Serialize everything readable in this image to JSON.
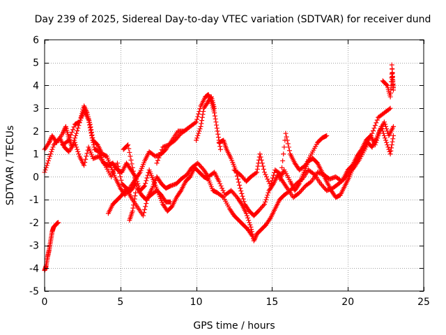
{
  "chart_data": {
    "type": "scatter",
    "title": "Day 239 of 2025, Sidereal Day-to-day VTEC variation (SDTVAR) for receiver dund",
    "xlabel": "GPS time / hours",
    "ylabel": "SDTVAR / TECUs",
    "xlim": [
      0,
      25
    ],
    "ylim": [
      -5,
      6
    ],
    "xticks": [
      0,
      5,
      10,
      15,
      20,
      25
    ],
    "yticks": [
      -5,
      -4,
      -3,
      -2,
      -1,
      0,
      1,
      2,
      3,
      4,
      5,
      6
    ],
    "grid": true,
    "marker": "+",
    "series": [
      {
        "name": "SDTVAR",
        "color": "#ff0000",
        "tracks": [
          [
            [
              0,
              -4.1
            ],
            [
              0.1,
              -3.9
            ],
            [
              0.2,
              -3.5
            ],
            [
              0.3,
              -3.2
            ],
            [
              0.4,
              -2.8
            ],
            [
              0.5,
              -2.4
            ],
            [
              0.6,
              -2.2
            ],
            [
              0.8,
              -2.05
            ],
            [
              0.9,
              -2.0
            ]
          ],
          [
            [
              0,
              1.2
            ],
            [
              0.3,
              1.5
            ],
            [
              0.5,
              1.8
            ],
            [
              0.8,
              1.5
            ],
            [
              1.2,
              1.9
            ],
            [
              1.4,
              2.2
            ],
            [
              1.6,
              1.7
            ],
            [
              1.8,
              1.3
            ],
            [
              2.1,
              1.9
            ],
            [
              2.4,
              2.6
            ],
            [
              2.6,
              3.1
            ],
            [
              2.8,
              2.8
            ],
            [
              3.0,
              2.3
            ],
            [
              3.2,
              1.6
            ],
            [
              3.5,
              1.4
            ],
            [
              3.8,
              1.0
            ],
            [
              4.1,
              0.9
            ],
            [
              4.4,
              0.4
            ],
            [
              4.7,
              -0.1
            ],
            [
              5.0,
              -0.5
            ],
            [
              5.3,
              -0.8
            ],
            [
              5.7,
              -0.4
            ],
            [
              6.0,
              -0.1
            ],
            [
              6.3,
              0.2
            ],
            [
              6.6,
              0.7
            ],
            [
              6.9,
              1.1
            ],
            [
              7.3,
              0.9
            ],
            [
              7.7,
              1.0
            ],
            [
              8.0,
              1.2
            ],
            [
              8.4,
              1.6
            ],
            [
              8.8,
              2.0
            ],
            [
              9.2,
              2.0
            ],
            [
              9.6,
              2.2
            ],
            [
              10.0,
              2.4
            ],
            [
              10.3,
              3.1
            ],
            [
              10.6,
              3.5
            ],
            [
              10.8,
              3.6
            ],
            [
              11.0,
              3.3
            ],
            [
              11.2,
              2.8
            ],
            [
              11.4,
              2.0
            ],
            [
              11.6,
              1.2
            ]
          ],
          [
            [
              0,
              0.2
            ],
            [
              0.3,
              0.8
            ],
            [
              0.6,
              1.4
            ],
            [
              1.0,
              1.7
            ],
            [
              1.3,
              1.3
            ],
            [
              1.6,
              1.1
            ],
            [
              2.0,
              1.5
            ],
            [
              2.3,
              0.9
            ],
            [
              2.6,
              0.5
            ],
            [
              2.9,
              1.3
            ],
            [
              3.2,
              0.8
            ],
            [
              3.6,
              0.9
            ],
            [
              4.0,
              0.5
            ],
            [
              4.4,
              0.0
            ],
            [
              4.8,
              0.6
            ],
            [
              5.1,
              -0.3
            ],
            [
              5.4,
              -0.5
            ],
            [
              5.7,
              -0.9
            ],
            [
              6.1,
              -1.3
            ],
            [
              6.5,
              -1.7
            ],
            [
              6.8,
              -0.9
            ],
            [
              7.1,
              -0.5
            ],
            [
              7.4,
              0.0
            ],
            [
              7.7,
              -0.3
            ],
            [
              8.0,
              -0.5
            ],
            [
              8.3,
              -0.4
            ],
            [
              8.7,
              -0.3
            ],
            [
              9.0,
              -0.1
            ],
            [
              9.4,
              0.1
            ],
            [
              9.7,
              0.4
            ],
            [
              10.1,
              0.6
            ],
            [
              10.5,
              0.3
            ],
            [
              10.8,
              0.0
            ],
            [
              11.2,
              0.2
            ],
            [
              11.5,
              -0.2
            ],
            [
              11.9,
              -0.8
            ],
            [
              12.3,
              -0.6
            ],
            [
              12.7,
              -0.9
            ],
            [
              13.0,
              -1.2
            ],
            [
              13.3,
              -1.6
            ],
            [
              13.6,
              -2.2
            ],
            [
              13.8,
              -2.8
            ],
            [
              14.0,
              -2.5
            ],
            [
              14.3,
              -2.3
            ],
            [
              14.6,
              -2.1
            ],
            [
              14.9,
              -1.8
            ],
            [
              15.2,
              -1.4
            ],
            [
              15.5,
              -1.0
            ],
            [
              15.8,
              -0.8
            ],
            [
              16.2,
              -0.6
            ],
            [
              16.6,
              -0.3
            ],
            [
              17.0,
              -0.1
            ],
            [
              17.4,
              0.3
            ],
            [
              17.8,
              0.1
            ],
            [
              18.2,
              -0.3
            ],
            [
              18.6,
              -0.6
            ],
            [
              19.0,
              -0.5
            ],
            [
              19.4,
              -0.3
            ],
            [
              19.7,
              -0.1
            ],
            [
              20.0,
              0.3
            ],
            [
              20.3,
              0.5
            ],
            [
              20.6,
              0.9
            ],
            [
              20.9,
              1.2
            ],
            [
              21.2,
              1.6
            ],
            [
              21.5,
              1.8
            ],
            [
              21.8,
              1.4
            ],
            [
              22.1,
              2.0
            ],
            [
              22.4,
              2.4
            ],
            [
              22.7,
              1.8
            ],
            [
              23.0,
              2.2
            ]
          ],
          [
            [
              1.2,
              1.4
            ],
            [
              1.6,
              1.6
            ],
            [
              2.0,
              2.3
            ],
            [
              2.3,
              2.4
            ],
            [
              2.6,
              2.9
            ],
            [
              2.9,
              2.5
            ],
            [
              3.1,
              1.8
            ],
            [
              3.3,
              1.2
            ],
            [
              3.6,
              1.1
            ],
            [
              3.9,
              0.6
            ],
            [
              4.2,
              0.5
            ],
            [
              4.5,
              0.6
            ],
            [
              4.8,
              0.3
            ],
            [
              5.1,
              0.2
            ],
            [
              5.4,
              0.6
            ],
            [
              5.7,
              0.3
            ],
            [
              6.0,
              0.0
            ],
            [
              6.3,
              -0.6
            ],
            [
              6.6,
              -0.4
            ],
            [
              6.9,
              0.3
            ],
            [
              7.2,
              -0.2
            ],
            [
              7.5,
              -0.7
            ],
            [
              7.8,
              -1.2
            ],
            [
              8.1,
              -1.5
            ],
            [
              8.4,
              -1.3
            ],
            [
              8.7,
              -0.9
            ],
            [
              9.0,
              -0.6
            ],
            [
              9.3,
              -0.2
            ],
            [
              9.6,
              0.0
            ],
            [
              9.9,
              0.4
            ],
            [
              10.2,
              0.2
            ],
            [
              10.5,
              0.0
            ],
            [
              10.8,
              -0.1
            ],
            [
              11.1,
              -0.6
            ],
            [
              11.4,
              -0.7
            ],
            [
              11.8,
              -0.9
            ],
            [
              12.2,
              -1.4
            ],
            [
              12.5,
              -1.7
            ],
            [
              12.8,
              -1.9
            ],
            [
              13.1,
              -2.1
            ],
            [
              13.4,
              -2.3
            ],
            [
              13.7,
              -2.6
            ]
          ],
          [
            [
              4.2,
              -1.6
            ],
            [
              4.5,
              -1.2
            ],
            [
              4.8,
              -1.0
            ],
            [
              5.1,
              -0.8
            ],
            [
              5.4,
              -0.5
            ],
            [
              5.7,
              -0.6
            ],
            [
              6.0,
              -0.3
            ]
          ],
          [
            [
              5.2,
              1.2
            ],
            [
              5.5,
              1.4
            ],
            [
              5.8,
              0.4
            ],
            [
              6.1,
              -0.5
            ],
            [
              6.4,
              -0.8
            ],
            [
              6.7,
              -1.0
            ],
            [
              7.0,
              -0.8
            ],
            [
              7.4,
              -0.6
            ],
            [
              7.7,
              -0.8
            ],
            [
              8.0,
              -1.1
            ],
            [
              8.3,
              -1.1
            ]
          ],
          [
            [
              5.6,
              -1.9
            ],
            [
              5.8,
              -1.5
            ],
            [
              6.0,
              -0.7
            ]
          ],
          [
            [
              7.4,
              0.6
            ],
            [
              7.8,
              1.3
            ],
            [
              8.2,
              1.4
            ],
            [
              8.6,
              1.6
            ],
            [
              9.0,
              1.9
            ],
            [
              9.4,
              2.1
            ]
          ],
          [
            [
              10.0,
              1.6
            ],
            [
              10.3,
              2.2
            ],
            [
              10.5,
              3.0
            ],
            [
              10.8,
              3.3
            ],
            [
              11.0,
              3.5
            ],
            [
              11.2,
              3.0
            ]
          ],
          [
            [
              11.5,
              1.5
            ],
            [
              11.8,
              1.6
            ],
            [
              12.0,
              1.2
            ],
            [
              12.3,
              0.8
            ],
            [
              12.6,
              0.3
            ],
            [
              12.9,
              -0.5
            ],
            [
              13.2,
              -1.2
            ],
            [
              13.5,
              -1.5
            ],
            [
              13.8,
              -1.7
            ],
            [
              14.1,
              -1.5
            ],
            [
              14.5,
              -1.2
            ],
            [
              14.8,
              -0.6
            ],
            [
              15.1,
              -0.3
            ],
            [
              15.4,
              0.1
            ],
            [
              15.7,
              -0.2
            ],
            [
              16.0,
              -0.5
            ],
            [
              16.4,
              -0.9
            ],
            [
              16.8,
              -0.7
            ],
            [
              17.2,
              -0.4
            ],
            [
              17.6,
              -0.2
            ],
            [
              18.0,
              0.2
            ],
            [
              18.4,
              0.1
            ],
            [
              18.8,
              -0.1
            ],
            [
              19.2,
              0.0
            ],
            [
              19.6,
              -0.2
            ],
            [
              20.0,
              0.1
            ],
            [
              20.4,
              0.4
            ],
            [
              20.8,
              0.8
            ],
            [
              21.2,
              1.3
            ],
            [
              21.6,
              1.9
            ],
            [
              22.0,
              2.6
            ],
            [
              22.4,
              2.8
            ],
            [
              22.8,
              3.0
            ]
          ],
          [
            [
              12.5,
              0.3
            ],
            [
              12.9,
              0.1
            ],
            [
              13.3,
              -0.2
            ],
            [
              13.6,
              0.0
            ],
            [
              14.0,
              0.2
            ],
            [
              14.2,
              1.0
            ],
            [
              14.5,
              0.2
            ],
            [
              14.9,
              -0.4
            ],
            [
              15.2,
              0.3
            ],
            [
              15.6,
              0.1
            ],
            [
              15.9,
              1.9
            ],
            [
              16.2,
              1.0
            ],
            [
              16.5,
              0.6
            ],
            [
              16.8,
              0.3
            ],
            [
              17.2,
              0.5
            ],
            [
              17.6,
              1.0
            ],
            [
              18.0,
              1.5
            ],
            [
              18.3,
              1.7
            ],
            [
              18.6,
              1.8
            ]
          ],
          [
            [
              15.5,
              -0.1
            ],
            [
              15.8,
              0.3
            ],
            [
              16.2,
              -0.2
            ],
            [
              16.5,
              -0.6
            ],
            [
              16.8,
              -0.3
            ],
            [
              17.1,
              0.2
            ],
            [
              17.4,
              0.7
            ],
            [
              17.7,
              0.8
            ],
            [
              18.0,
              0.6
            ],
            [
              18.3,
              0.2
            ],
            [
              18.6,
              -0.2
            ],
            [
              18.9,
              -0.6
            ],
            [
              19.2,
              -0.9
            ],
            [
              19.5,
              -0.8
            ],
            [
              19.8,
              -0.4
            ],
            [
              20.1,
              0.0
            ],
            [
              20.4,
              0.5
            ],
            [
              20.7,
              0.8
            ],
            [
              21.0,
              1.2
            ],
            [
              21.3,
              1.5
            ],
            [
              21.6,
              1.3
            ],
            [
              21.9,
              1.7
            ],
            [
              22.2,
              2.2
            ],
            [
              22.5,
              1.6
            ],
            [
              22.8,
              1.0
            ],
            [
              23.0,
              1.8
            ]
          ],
          [
            [
              22.3,
              4.2
            ],
            [
              22.6,
              4.0
            ],
            [
              22.8,
              3.5
            ],
            [
              22.9,
              4.5
            ],
            [
              23.0,
              3.8
            ],
            [
              22.9,
              4.9
            ],
            [
              23.0,
              3.9
            ]
          ]
        ]
      }
    ]
  }
}
